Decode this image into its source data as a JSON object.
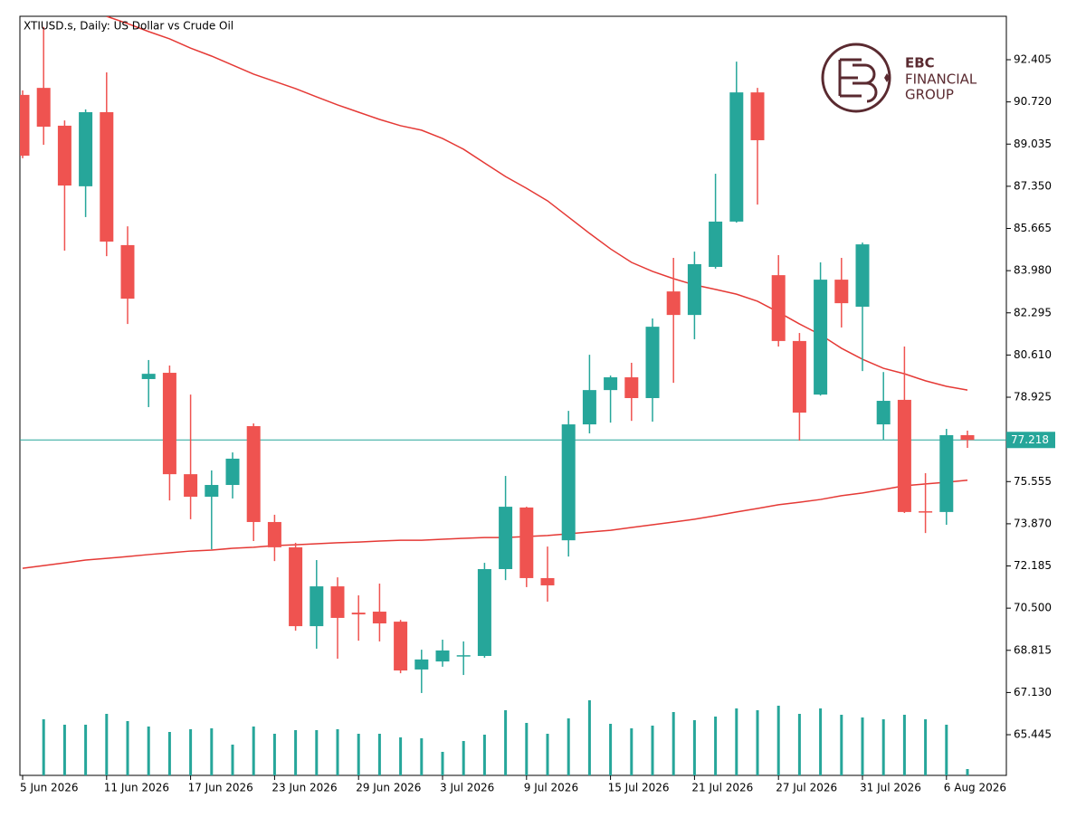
{
  "chart_data": {
    "type": "candlestick",
    "title": "XTIUSD.s, Daily:  US Dollar vs Crude Oil",
    "logo": {
      "brand": "EBC",
      "line1": "FINANCIAL",
      "line2": "GROUP"
    },
    "categories": [
      "5 Jun 2026",
      null,
      null,
      null,
      "11 Jun 2026",
      null,
      null,
      null,
      "17 Jun 2026",
      null,
      null,
      null,
      "23 Jun 2026",
      null,
      null,
      null,
      "29 Jun 2026",
      null,
      null,
      null,
      "3 Jul 2026",
      null,
      null,
      null,
      "9 Jul 2026",
      null,
      null,
      null,
      "15 Jul 2026",
      null,
      null,
      null,
      "21 Jul 2026",
      null,
      null,
      null,
      "27 Jul 2026",
      null,
      null,
      null,
      "31 Jul 2026",
      null,
      null,
      null,
      "6 Aug 2026",
      null
    ],
    "candles": [
      {
        "open": 91.0,
        "high": 91.18,
        "low": 88.47,
        "close": 88.57
      },
      {
        "open": 91.28,
        "high": 93.71,
        "low": 89.01,
        "close": 89.73
      },
      {
        "open": 89.77,
        "high": 89.98,
        "low": 84.78,
        "close": 87.38
      },
      {
        "open": 87.35,
        "high": 90.42,
        "low": 86.12,
        "close": 90.31
      },
      {
        "open": 90.31,
        "high": 91.9,
        "low": 84.56,
        "close": 85.14
      },
      {
        "open": 85.0,
        "high": 85.75,
        "low": 81.85,
        "close": 82.86
      },
      {
        "open": 79.65,
        "high": 80.41,
        "low": 78.53,
        "close": 79.86
      },
      {
        "open": 79.9,
        "high": 80.19,
        "low": 74.8,
        "close": 75.85
      },
      {
        "open": 75.85,
        "high": 79.03,
        "low": 74.05,
        "close": 74.95
      },
      {
        "open": 74.95,
        "high": 76.0,
        "low": 72.85,
        "close": 75.42
      },
      {
        "open": 75.42,
        "high": 76.72,
        "low": 74.88,
        "close": 76.47
      },
      {
        "open": 77.77,
        "high": 77.88,
        "low": 73.18,
        "close": 73.94
      },
      {
        "open": 73.94,
        "high": 74.23,
        "low": 72.38,
        "close": 72.93
      },
      {
        "open": 72.93,
        "high": 73.11,
        "low": 69.6,
        "close": 69.78
      },
      {
        "open": 69.78,
        "high": 72.42,
        "low": 68.88,
        "close": 71.37
      },
      {
        "open": 71.37,
        "high": 71.73,
        "low": 68.48,
        "close": 70.11
      },
      {
        "open": 70.32,
        "high": 71.01,
        "low": 69.2,
        "close": 70.25
      },
      {
        "open": 70.36,
        "high": 71.48,
        "low": 69.17,
        "close": 69.89
      },
      {
        "open": 69.96,
        "high": 70.03,
        "low": 67.9,
        "close": 68.01
      },
      {
        "open": 68.05,
        "high": 68.84,
        "low": 67.11,
        "close": 68.45
      },
      {
        "open": 68.37,
        "high": 69.24,
        "low": 68.16,
        "close": 68.81
      },
      {
        "open": 68.59,
        "high": 69.17,
        "low": 67.83,
        "close": 68.62
      },
      {
        "open": 68.59,
        "high": 72.31,
        "low": 68.52,
        "close": 72.06
      },
      {
        "open": 72.06,
        "high": 75.78,
        "low": 71.62,
        "close": 74.55
      },
      {
        "open": 74.52,
        "high": 74.55,
        "low": 71.34,
        "close": 71.7
      },
      {
        "open": 71.7,
        "high": 72.96,
        "low": 70.76,
        "close": 71.41
      },
      {
        "open": 73.21,
        "high": 78.38,
        "low": 72.56,
        "close": 77.84
      },
      {
        "open": 77.84,
        "high": 80.62,
        "low": 77.48,
        "close": 79.21
      },
      {
        "open": 79.21,
        "high": 79.79,
        "low": 77.91,
        "close": 79.72
      },
      {
        "open": 79.72,
        "high": 80.3,
        "low": 77.98,
        "close": 78.89
      },
      {
        "open": 78.89,
        "high": 82.07,
        "low": 77.95,
        "close": 81.74
      },
      {
        "open": 83.15,
        "high": 84.49,
        "low": 79.5,
        "close": 82.21
      },
      {
        "open": 82.21,
        "high": 84.74,
        "low": 81.24,
        "close": 84.24
      },
      {
        "open": 84.13,
        "high": 87.85,
        "low": 84.06,
        "close": 85.94
      },
      {
        "open": 85.94,
        "high": 92.33,
        "low": 85.9,
        "close": 91.1
      },
      {
        "open": 91.1,
        "high": 91.28,
        "low": 86.62,
        "close": 89.19
      },
      {
        "open": 83.8,
        "high": 84.6,
        "low": 80.95,
        "close": 81.17
      },
      {
        "open": 81.17,
        "high": 81.49,
        "low": 77.19,
        "close": 78.31
      },
      {
        "open": 79.03,
        "high": 84.31,
        "low": 78.99,
        "close": 83.62
      },
      {
        "open": 83.62,
        "high": 84.49,
        "low": 81.71,
        "close": 82.68
      },
      {
        "open": 82.54,
        "high": 85.1,
        "low": 79.97,
        "close": 85.03
      },
      {
        "open": 77.84,
        "high": 79.93,
        "low": 77.23,
        "close": 78.78
      },
      {
        "open": 78.82,
        "high": 80.95,
        "low": 74.3,
        "close": 74.34
      },
      {
        "open": 74.37,
        "high": 75.89,
        "low": 73.5,
        "close": 74.34
      },
      {
        "open": 74.34,
        "high": 77.66,
        "low": 73.83,
        "close": 77.41
      },
      {
        "open": 77.41,
        "high": 77.59,
        "low": 76.9,
        "close": 77.218
      }
    ],
    "up_color": "#26a69a",
    "down_color": "#ef5350",
    "moving_averages": [
      {
        "color": "#e53935",
        "values": [
          null,
          null,
          null,
          null,
          94.14,
          93.85,
          93.53,
          93.24,
          92.87,
          92.55,
          92.19,
          91.83,
          91.54,
          91.25,
          90.92,
          90.6,
          90.31,
          90.02,
          89.77,
          89.59,
          89.26,
          88.83,
          88.28,
          87.74,
          87.27,
          86.77,
          86.12,
          85.47,
          84.85,
          84.31,
          83.95,
          83.66,
          83.41,
          83.23,
          83.04,
          82.76,
          82.32,
          81.85,
          81.42,
          80.88,
          80.44,
          80.08,
          79.86,
          79.58,
          79.36,
          79.21
        ]
      },
      {
        "color": "#e53935",
        "values": [
          72.09,
          72.2,
          72.31,
          72.42,
          72.49,
          72.56,
          72.64,
          72.71,
          72.78,
          72.82,
          72.89,
          72.93,
          73.0,
          73.03,
          73.07,
          73.11,
          73.14,
          73.18,
          73.21,
          73.21,
          73.25,
          73.29,
          73.32,
          73.32,
          73.36,
          73.4,
          73.47,
          73.54,
          73.61,
          73.72,
          73.83,
          73.94,
          74.05,
          74.19,
          74.34,
          74.48,
          74.63,
          74.73,
          74.84,
          74.99,
          75.1,
          75.24,
          75.39,
          75.46,
          75.53,
          75.61
        ]
      }
    ],
    "volumes": [
      null,
      62,
      56,
      56,
      68,
      60,
      54,
      48,
      51,
      52,
      34,
      54,
      46,
      50,
      50,
      51,
      46,
      46,
      42,
      41,
      26,
      38,
      45,
      72,
      58,
      46,
      63,
      83,
      57,
      52,
      55,
      70,
      61,
      65,
      74,
      72,
      77,
      68,
      74,
      67,
      64,
      62,
      67,
      62,
      56,
      7
    ],
    "vlim": [
      0,
      100
    ],
    "volume_color": "#26a69a",
    "current_price": 77.218,
    "current_price_color": "#26a69a",
    "ylim": [
      63.82,
      94.14
    ],
    "yticks": [
      92.405,
      {
        "value": 90.72,
        "label": "90.720"
      },
      89.035,
      {
        "value": 87.35,
        "label": "87.350"
      },
      85.665,
      {
        "value": 83.98,
        "label": "83.980"
      },
      82.295,
      {
        "value": 80.61,
        "label": "80.610"
      },
      78.925,
      75.555,
      {
        "value": 73.87,
        "label": "73.870"
      },
      72.185,
      {
        "value": 70.5,
        "label": "70.500"
      },
      68.815,
      {
        "value": 67.13,
        "label": "67.130"
      },
      65.445
    ]
  }
}
